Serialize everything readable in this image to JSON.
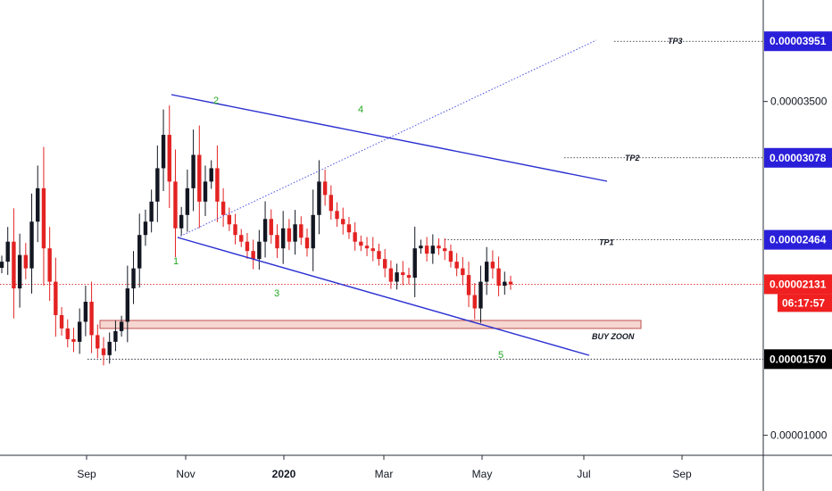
{
  "chart_data": {
    "type": "candlestick",
    "title": "",
    "xlabel": "",
    "ylabel": "",
    "ylim": [
      8.5e-06,
      4.26e-05
    ],
    "x_ticks": [
      "Sep",
      "Nov",
      "2020",
      "Mar",
      "May",
      "Jul",
      "Sep"
    ],
    "y_ticks": [
      "0.00003500",
      "0.00001000"
    ],
    "price_tags": [
      {
        "label": "0.00003951",
        "value": 3.951e-05,
        "bg": "#2a1fd9"
      },
      {
        "label": "0.00003078",
        "value": 3.078e-05,
        "bg": "#2a1fd9"
      },
      {
        "label": "0.00002464",
        "value": 2.464e-05,
        "bg": "#2a1fd9"
      },
      {
        "label": "0.00002131",
        "value": 2.131e-05,
        "bg": "#f02020"
      },
      {
        "label": "0.00001570",
        "value": 1.57e-05,
        "bg": "#000000"
      }
    ],
    "countdown": "06:17:57",
    "annotations": {
      "tp3": "TP3",
      "tp2": "TP2",
      "tp1": "TP1",
      "buy_zone": "BUY ZOON",
      "waves": [
        "1",
        "2",
        "3",
        "4",
        "5"
      ]
    },
    "current_price": 2.131e-05,
    "buy_zone": [
      1.8e-05,
      1.86e-05
    ],
    "series": [
      {
        "values": [
          2.3e-05,
          2.45e-05,
          2.1e-05,
          2.35e-05,
          2.25e-05,
          2.6e-05,
          2.85e-05,
          2.4e-05,
          2.15e-05,
          1.9e-05,
          1.8e-05,
          1.72e-05,
          1.7e-05,
          1.85e-05,
          2e-05,
          1.75e-05,
          1.65e-05,
          1.6e-05,
          1.7e-05,
          1.78e-05,
          1.85e-05,
          2.1e-05,
          2.25e-05,
          2.5e-05,
          2.6e-05,
          2.75e-05,
          3e-05,
          3.25e-05,
          2.9e-05,
          2.55e-05,
          2.65e-05,
          2.85e-05,
          3.1e-05,
          2.75e-05,
          2.9e-05,
          3e-05,
          2.75e-05,
          2.65e-05,
          2.58e-05,
          2.5e-05,
          2.45e-05,
          2.38e-05,
          2.32e-05,
          2.45e-05,
          2.62e-05,
          2.5e-05,
          2.4e-05,
          2.55e-05,
          2.45e-05,
          2.58e-05,
          2.48e-05,
          2.4e-05,
          2.65e-05,
          2.9e-05,
          2.8e-05,
          2.68e-05,
          2.62e-05,
          2.58e-05,
          2.52e-05,
          2.45e-05,
          2.42e-05,
          2.4e-05,
          2.38e-05,
          2.32e-05,
          2.25e-05,
          2.15e-05,
          2.22e-05,
          2.2e-05,
          2.18e-05,
          2.4e-05,
          2.42e-05,
          2.36e-05,
          2.42e-05,
          2.4e-05,
          2.38e-05,
          2.3e-05,
          2.25e-05,
          2.2e-05,
          2.05e-05,
          1.95e-05,
          2.15e-05,
          2.3e-05,
          2.25e-05,
          2.12e-05,
          2.15e-05,
          2.13e-05
        ]
      }
    ]
  }
}
